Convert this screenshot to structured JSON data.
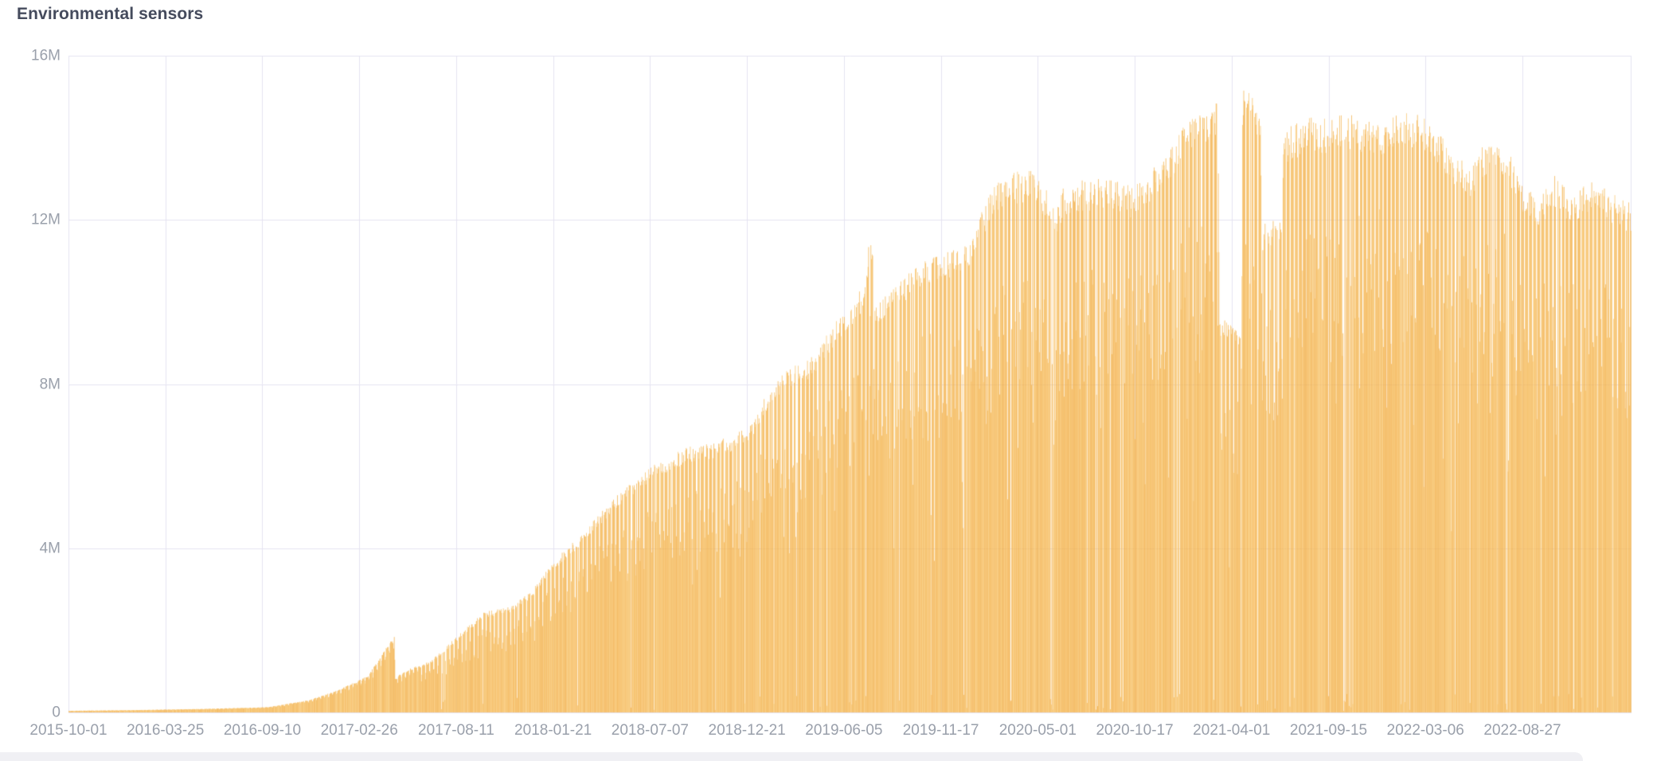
{
  "page": {
    "title": "Environmental sensors"
  },
  "colors": {
    "background": "#ffffff",
    "title_text": "#454b5d",
    "axis_text": "#9aa0ab",
    "grid_line": "#e5e3f1",
    "bar_base": "#f4b34c",
    "bar_palette": [
      "#f1ac40",
      "#f4b34c",
      "#f6bb59",
      "#f2af45",
      "#f8c367"
    ],
    "panel_strip": "#f0f0f4"
  },
  "chart_data": {
    "type": "bar",
    "title": "Environmental sensors",
    "grid": true,
    "legend_position": "none",
    "x_axis": {
      "start": "2015-10-01",
      "end": "2023-02-28",
      "tick_labels": [
        "2015-10-01",
        "2016-03-25",
        "2016-09-10",
        "2017-02-26",
        "2017-08-11",
        "2018-01-21",
        "2018-07-07",
        "2018-12-21",
        "2019-06-05",
        "2019-11-17",
        "2020-05-01",
        "2020-10-17",
        "2021-04-01",
        "2021-09-15",
        "2022-03-06",
        "2022-08-27"
      ]
    },
    "y_axis": {
      "min": 0,
      "max": 16000000,
      "tick_labels": [
        "16M",
        "12M",
        "8M",
        "4M",
        "0"
      ],
      "tick_values": [
        16000000,
        12000000,
        8000000,
        4000000,
        0
      ]
    },
    "series": [
      {
        "name": "Environmental sensors",
        "value_unit_millions": true,
        "envelope_points": [
          [
            "2015-10-01",
            0.04
          ],
          [
            "2016-02-01",
            0.06
          ],
          [
            "2016-06-01",
            0.09
          ],
          [
            "2016-09-10",
            0.13
          ],
          [
            "2016-11-20",
            0.3
          ],
          [
            "2017-01-10",
            0.55
          ],
          [
            "2017-03-03",
            0.9
          ],
          [
            "2017-04-14",
            1.82
          ],
          [
            "2017-04-17",
            1.88
          ],
          [
            "2017-04-19",
            0.85
          ],
          [
            "2017-05-10",
            1.05
          ],
          [
            "2017-06-19",
            1.25
          ],
          [
            "2017-08-11",
            1.95
          ],
          [
            "2017-09-20",
            2.45
          ],
          [
            "2017-11-07",
            2.6
          ],
          [
            "2017-12-14",
            3.0
          ],
          [
            "2018-01-10",
            3.6
          ],
          [
            "2018-02-25",
            4.2
          ],
          [
            "2018-04-04",
            4.8
          ],
          [
            "2018-05-15",
            5.4
          ],
          [
            "2018-07-07",
            6.0
          ],
          [
            "2018-09-02",
            6.45
          ],
          [
            "2018-10-27",
            6.6
          ],
          [
            "2018-12-21",
            6.95
          ],
          [
            "2019-02-04",
            8.1
          ],
          [
            "2019-03-16",
            8.5
          ],
          [
            "2019-04-13",
            8.7
          ],
          [
            "2019-05-15",
            9.4
          ],
          [
            "2019-06-05",
            9.8
          ],
          [
            "2019-07-14",
            10.5
          ],
          [
            "2019-07-20",
            12.2
          ],
          [
            "2019-07-24",
            11.5
          ],
          [
            "2019-07-29",
            10.0
          ],
          [
            "2019-09-01",
            10.4
          ],
          [
            "2019-10-15",
            11.0
          ],
          [
            "2019-11-17",
            11.2
          ],
          [
            "2020-01-05",
            11.4
          ],
          [
            "2020-02-20",
            12.9
          ],
          [
            "2020-04-01",
            13.2
          ],
          [
            "2020-05-01",
            13.2
          ],
          [
            "2020-06-08",
            12.3
          ],
          [
            "2020-06-20",
            12.9
          ],
          [
            "2020-08-01",
            13.0
          ],
          [
            "2020-09-15",
            13.0
          ],
          [
            "2020-10-17",
            12.8
          ],
          [
            "2020-12-01",
            13.4
          ],
          [
            "2021-01-15",
            14.3
          ],
          [
            "2021-02-15",
            14.7
          ],
          [
            "2021-03-14",
            14.9
          ],
          [
            "2021-03-17",
            9.6
          ],
          [
            "2021-04-22",
            9.5
          ],
          [
            "2021-04-26",
            15.2
          ],
          [
            "2021-05-27",
            14.9
          ],
          [
            "2021-05-30",
            11.9
          ],
          [
            "2021-07-03",
            12.1
          ],
          [
            "2021-07-06",
            14.2
          ],
          [
            "2021-08-15",
            14.5
          ],
          [
            "2021-09-15",
            14.5
          ],
          [
            "2021-11-01",
            14.6
          ],
          [
            "2021-12-20",
            14.3
          ],
          [
            "2022-02-01",
            14.7
          ],
          [
            "2022-03-06",
            14.5
          ],
          [
            "2022-04-20",
            13.8
          ],
          [
            "2022-05-25",
            13.3
          ],
          [
            "2022-06-25",
            14.0
          ],
          [
            "2022-08-01",
            13.7
          ],
          [
            "2022-08-27",
            12.9
          ],
          [
            "2022-09-20",
            12.5
          ],
          [
            "2022-10-20",
            13.1
          ],
          [
            "2022-11-20",
            12.6
          ],
          [
            "2022-12-20",
            13.0
          ],
          [
            "2023-01-25",
            12.7
          ],
          [
            "2023-02-28",
            12.4
          ]
        ]
      }
    ],
    "texture": {
      "seed": 7,
      "daily_jitter": [
        0.94,
        1.0
      ],
      "weekend_dip_factor_early": [
        0.82,
        0.96
      ],
      "weekend_dip_factor": [
        0.6,
        0.86
      ],
      "weekend_switch_date": "2017-06-01",
      "outage_start_date": "2017-06-01",
      "outage_probability": 0.012,
      "outage_late_start_date": "2018-06-01",
      "outage_probability_late": 0.032,
      "outage_value_range_millions": [
        0.03,
        0.45
      ],
      "moderate_dip_start_date": "2018-06-01",
      "moderate_dip_probability": 0.05,
      "moderate_dip_factor": [
        0.5,
        0.8
      ]
    }
  }
}
